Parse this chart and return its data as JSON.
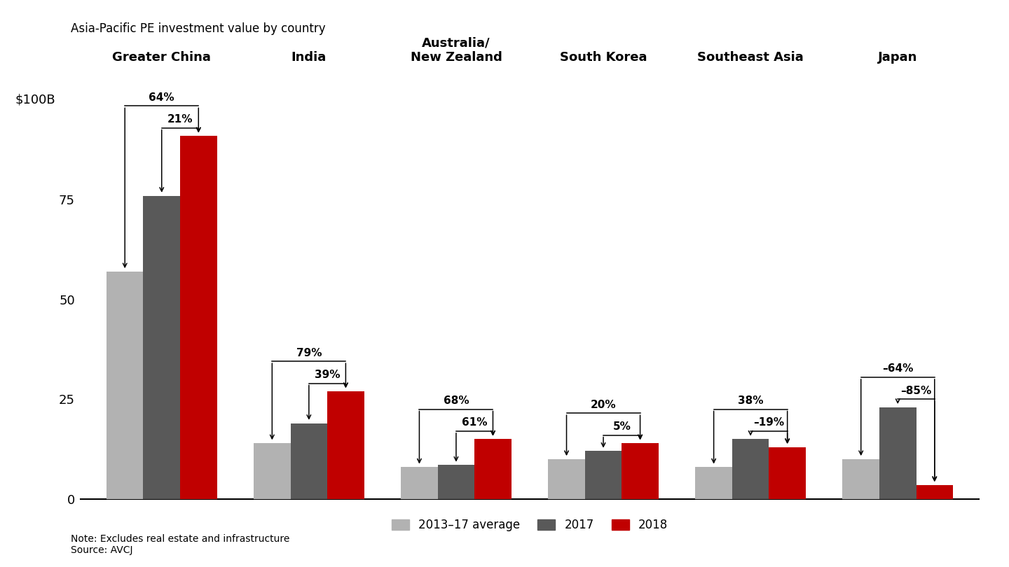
{
  "title": "Asia-Pacific PE investment value by country",
  "categories": [
    "Greater China",
    "India",
    "Australia/\nNew Zealand",
    "South Korea",
    "Southeast Asia",
    "Japan"
  ],
  "series": {
    "avg": [
      57,
      14,
      8,
      10,
      8,
      10
    ],
    "y2017": [
      76,
      19,
      8.5,
      12,
      15,
      23
    ],
    "y2018": [
      91,
      27,
      15,
      14,
      13,
      3.5
    ]
  },
  "annotations": [
    {
      "outer_pct": "64%",
      "inner_pct": "21%",
      "gi": 0
    },
    {
      "outer_pct": "79%",
      "inner_pct": "39%",
      "gi": 1
    },
    {
      "outer_pct": "68%",
      "inner_pct": "61%",
      "gi": 2
    },
    {
      "outer_pct": "20%",
      "inner_pct": "5%",
      "gi": 3
    },
    {
      "outer_pct": "38%",
      "inner_pct": "–19%",
      "gi": 4
    },
    {
      "outer_pct": "–64%",
      "inner_pct": "–85%",
      "gi": 5
    }
  ],
  "colors": {
    "avg": "#b2b2b2",
    "y2017": "#595959",
    "y2018": "#c00000",
    "background": "#ffffff"
  },
  "ylim": [
    0,
    108
  ],
  "yticks": [
    0,
    25,
    50,
    75
  ],
  "ylabel_text": "$100B",
  "legend_labels": [
    "2013–17 average",
    "2017",
    "2018"
  ],
  "note": "Note: Excludes real estate and infrastructure",
  "source": "Source: AVCJ"
}
